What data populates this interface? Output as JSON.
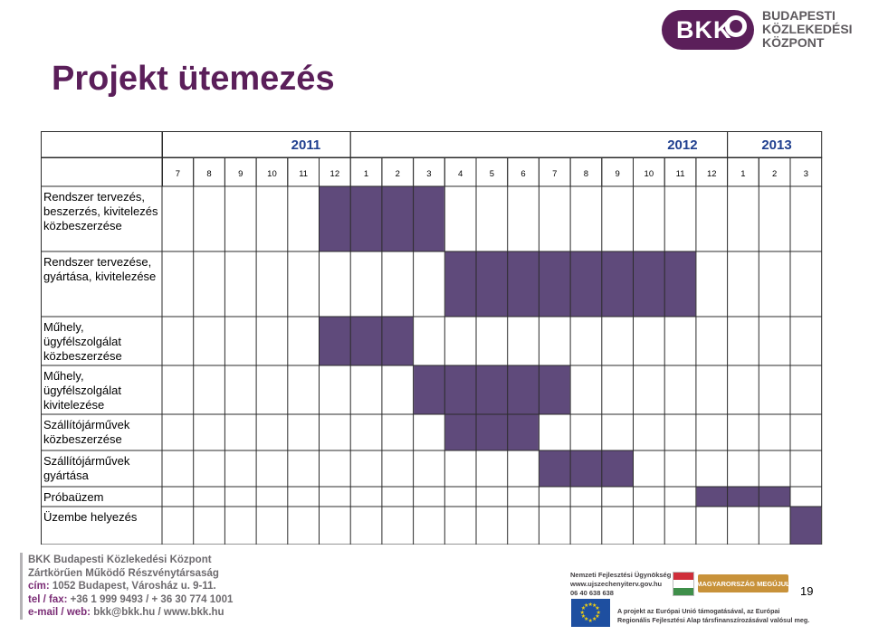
{
  "logo": {
    "mark": "BKK",
    "lines": [
      "BUDAPESTI",
      "KÖZLEKEDÉSI",
      "KÖZPONT"
    ],
    "color": "#5b1f5a"
  },
  "title": "Projekt ütemezés",
  "gantt": {
    "years": [
      {
        "label": "2011",
        "from": 0,
        "span": 6
      },
      {
        "label": "2012",
        "from": 6,
        "span": 12
      },
      {
        "label": "2013",
        "from": 18,
        "span": 3
      }
    ],
    "months": [
      "7",
      "8",
      "9",
      "10",
      "11",
      "12",
      "1",
      "2",
      "3",
      "4",
      "5",
      "6",
      "7",
      "8",
      "9",
      "10",
      "11",
      "12",
      "1",
      "2",
      "3"
    ],
    "bar_color": "#5f4a7b",
    "tasks": [
      {
        "label": "Rendszer tervezés, beszerzés, kivitelezés közbeszerzése",
        "start": 5,
        "end": 9
      },
      {
        "label": "Rendszer tervezése, gyártása, kivitelezése",
        "start": 9,
        "end": 17
      },
      {
        "label": "Műhely, ügyfélszolgálat közbeszerzése",
        "start": 5,
        "end": 8
      },
      {
        "label": "Műhely, ügyfélszolgálat kivitelezése",
        "start": 8,
        "end": 13
      },
      {
        "label": "Szállítójárművek közbeszerzése",
        "start": 9,
        "end": 12
      },
      {
        "label": "Szállítójárművek gyártása",
        "start": 12,
        "end": 15
      },
      {
        "label": "Próbaüzem",
        "start": 17,
        "end": 20
      },
      {
        "label": "Üzembe helyezés",
        "start": 20,
        "end": 21
      }
    ]
  },
  "footer": {
    "company": "BKK Budapesti Közlekedési Központ",
    "company_type": "Zártkörűen Működő Részvénytársaság",
    "address_label": "cím:",
    "address": " 1052 Budapest, Városház u. 9-11.",
    "phone_label": "tel / fax:",
    "phone": " +36 1 999 9493 / + 36 30 774 1001",
    "email_label": "e-mail / web:",
    "email": " bkk@bkk.hu / www.bkk.hu"
  },
  "agency": {
    "name": "Nemzeti Fejlesztési Ügynökség",
    "web": "www.ujszechenyiterv.gov.hu",
    "phone": "06 40 638 638"
  },
  "banner": "MAGYARORSZÁG MEGÚJUL",
  "eu_note": {
    "line1": "A projekt az Európai Unió támogatásával, az Európai",
    "line2": "Regionális Fejlesztési Alap társfinanszírozásával valósul meg."
  },
  "page_number": "19"
}
